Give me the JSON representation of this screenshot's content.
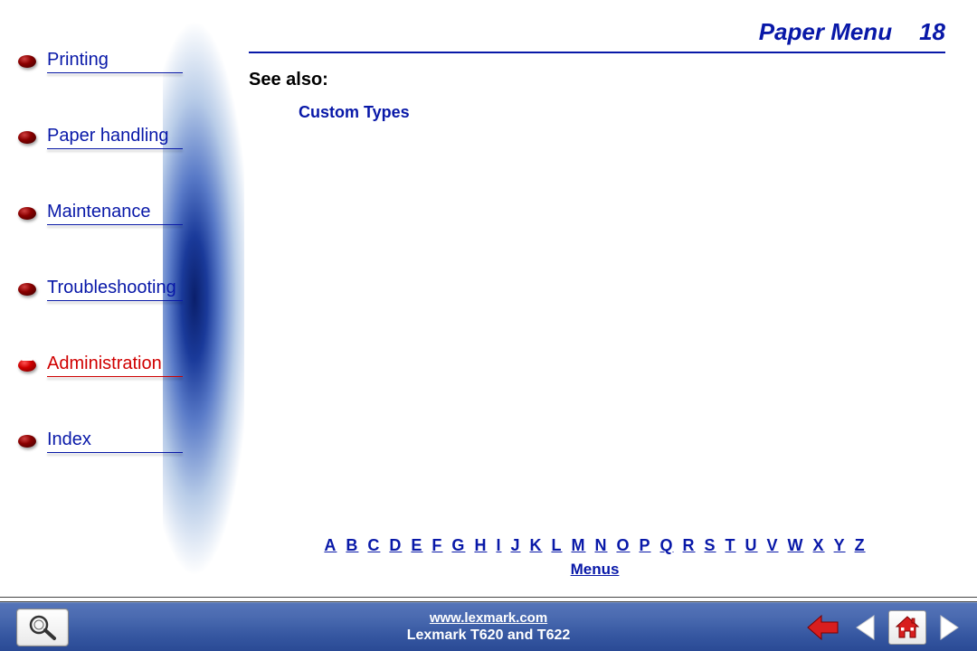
{
  "header": {
    "title": "Paper Menu",
    "page_number": "18"
  },
  "sidebar": {
    "items": [
      {
        "label": "Printing",
        "active": false
      },
      {
        "label": "Paper handling",
        "active": false
      },
      {
        "label": "Maintenance",
        "active": false
      },
      {
        "label": "Troubleshooting",
        "active": false
      },
      {
        "label": "Administration",
        "active": true
      },
      {
        "label": "Index",
        "active": false
      }
    ]
  },
  "content": {
    "see_also_label": "See also:",
    "see_also_link": "Custom Types"
  },
  "alpha_index": {
    "letters": [
      "A",
      "B",
      "C",
      "D",
      "E",
      "F",
      "G",
      "H",
      "I",
      "J",
      "K",
      "L",
      "M",
      "N",
      "O",
      "P",
      "Q",
      "R",
      "S",
      "T",
      "U",
      "V",
      "W",
      "X",
      "Y",
      "Z"
    ],
    "menus_label": "Menus"
  },
  "footer": {
    "url": "www.lexmark.com",
    "model": "Lexmark T620 and T622"
  },
  "colors": {
    "primary": "#0818a8",
    "active": "#d00000",
    "footer_bar": "#3556a0"
  }
}
